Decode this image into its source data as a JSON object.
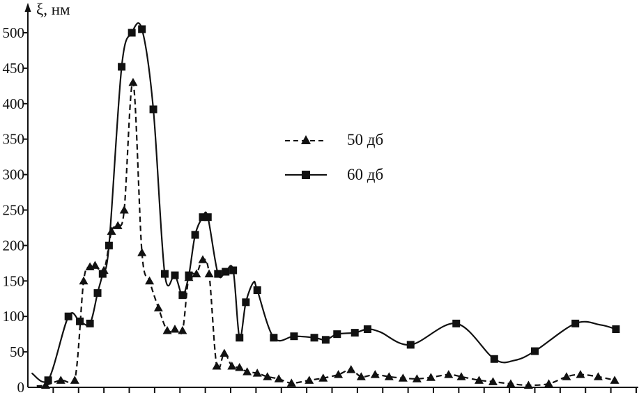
{
  "chart_data": {
    "type": "line",
    "title": "",
    "xlabel": "",
    "ylabel": "ξ, нм",
    "ylim": [
      0,
      520
    ],
    "xlim": [
      0,
      24
    ],
    "yticks": [
      0,
      50,
      100,
      150,
      200,
      250,
      300,
      350,
      400,
      450,
      500
    ],
    "x_tick_count": 24,
    "x_tick_labels_visible": false,
    "grid": false,
    "legend_position": "upper-center",
    "line_color": "#111111",
    "series": [
      {
        "name": "50 дб",
        "marker": "triangle",
        "line": "dashed",
        "points": [
          [
            0.35,
            2,
            0
          ],
          [
            0.7,
            3
          ],
          [
            1.3,
            10
          ],
          [
            1.85,
            10
          ],
          [
            2.2,
            150
          ],
          [
            2.45,
            170
          ],
          [
            2.65,
            172
          ],
          [
            3.0,
            165
          ],
          [
            3.3,
            220
          ],
          [
            3.55,
            228
          ],
          [
            3.8,
            250
          ],
          [
            4.15,
            430
          ],
          [
            4.5,
            190
          ],
          [
            4.8,
            150
          ],
          [
            5.15,
            112
          ],
          [
            5.5,
            80
          ],
          [
            5.8,
            82
          ],
          [
            6.1,
            80
          ],
          [
            6.35,
            155
          ],
          [
            6.65,
            160
          ],
          [
            6.9,
            180
          ],
          [
            7.15,
            160
          ],
          [
            7.45,
            30
          ],
          [
            7.75,
            48
          ],
          [
            8.05,
            30
          ],
          [
            8.35,
            28
          ],
          [
            8.65,
            22
          ],
          [
            9.05,
            20
          ],
          [
            9.45,
            15
          ],
          [
            9.9,
            12
          ],
          [
            10.4,
            6
          ],
          [
            11.1,
            10
          ],
          [
            11.65,
            13
          ],
          [
            12.25,
            18
          ],
          [
            12.75,
            25
          ],
          [
            13.15,
            15
          ],
          [
            13.7,
            18
          ],
          [
            14.25,
            15
          ],
          [
            14.8,
            13
          ],
          [
            15.35,
            12
          ],
          [
            15.9,
            14
          ],
          [
            16.6,
            18
          ],
          [
            17.1,
            15
          ],
          [
            17.8,
            10
          ],
          [
            18.35,
            8
          ],
          [
            19.05,
            5
          ],
          [
            19.75,
            3
          ],
          [
            20.55,
            5
          ],
          [
            21.25,
            15
          ],
          [
            21.8,
            18
          ],
          [
            22.5,
            15
          ],
          [
            23.15,
            10
          ]
        ]
      },
      {
        "name": "60 дб",
        "marker": "square",
        "line": "solid",
        "points": [
          [
            0.15,
            20,
            0
          ],
          [
            0.8,
            10
          ],
          [
            1.6,
            100
          ],
          [
            2.05,
            93
          ],
          [
            2.45,
            90
          ],
          [
            2.75,
            133
          ],
          [
            2.95,
            160
          ],
          [
            3.2,
            200
          ],
          [
            3.7,
            452
          ],
          [
            4.1,
            500
          ],
          [
            4.5,
            505
          ],
          [
            4.95,
            392
          ],
          [
            5.4,
            160
          ],
          [
            5.8,
            158
          ],
          [
            6.1,
            130
          ],
          [
            6.35,
            158
          ],
          [
            6.6,
            215
          ],
          [
            6.9,
            240
          ],
          [
            7.1,
            240
          ],
          [
            7.5,
            160
          ],
          [
            7.8,
            163
          ],
          [
            8.1,
            165
          ],
          [
            8.35,
            70
          ],
          [
            8.6,
            120
          ],
          [
            8.9,
            148,
            0
          ],
          [
            9.05,
            137
          ],
          [
            9.7,
            70
          ],
          [
            10.5,
            72
          ],
          [
            11.3,
            70
          ],
          [
            11.75,
            67
          ],
          [
            12.2,
            75
          ],
          [
            12.9,
            77
          ],
          [
            13.4,
            82
          ],
          [
            13.9,
            78,
            0
          ],
          [
            15.1,
            60
          ],
          [
            16.9,
            90
          ],
          [
            18.4,
            40
          ],
          [
            19.2,
            38,
            0
          ],
          [
            20.0,
            51
          ],
          [
            21.6,
            90
          ],
          [
            22.6,
            88,
            0
          ],
          [
            23.2,
            82
          ]
        ]
      }
    ]
  }
}
